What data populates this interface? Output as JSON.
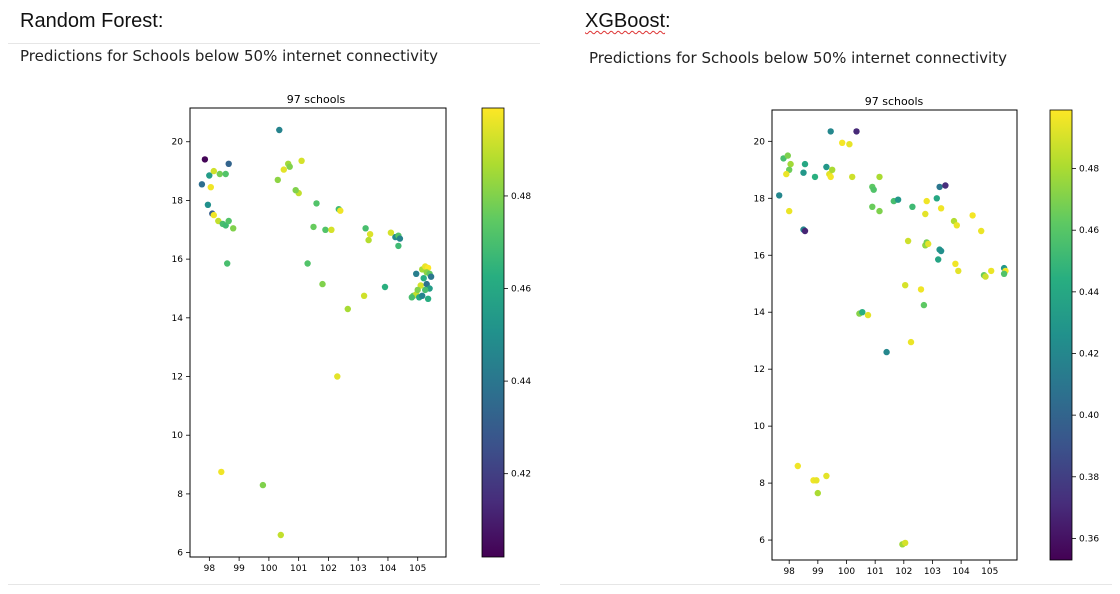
{
  "panels": [
    {
      "heading": "Random Forest:",
      "subheading": "Predictions for Schools below 50% internet connectivity"
    },
    {
      "heading": "XGBoost",
      "heading_suffix": ":",
      "subheading": "Predictions for Schools below 50% internet connectivity"
    }
  ],
  "chart_data": [
    {
      "type": "scatter",
      "title": "97 schools",
      "xlabel": "",
      "ylabel": "",
      "xlim": [
        97.35,
        105.95
      ],
      "ylim": [
        5.85,
        21.15
      ],
      "xticks": [
        "98",
        "99",
        "100",
        "101",
        "102",
        "103",
        "104",
        "105"
      ],
      "yticks": [
        "6",
        "8",
        "10",
        "12",
        "14",
        "16",
        "18",
        "20"
      ],
      "colormap": "viridis",
      "colorbar": {
        "range": [
          0.402,
          0.499
        ],
        "ticks": [
          "0.42",
          "0.44",
          "0.46",
          "0.48"
        ]
      },
      "points": [
        {
          "x": 97.85,
          "y": 19.4,
          "v": 0.403
        },
        {
          "x": 98.65,
          "y": 19.25,
          "v": 0.433
        },
        {
          "x": 97.75,
          "y": 18.55,
          "v": 0.437
        },
        {
          "x": 98.0,
          "y": 18.85,
          "v": 0.455
        },
        {
          "x": 98.15,
          "y": 19.0,
          "v": 0.492
        },
        {
          "x": 98.35,
          "y": 18.9,
          "v": 0.478
        },
        {
          "x": 98.55,
          "y": 18.9,
          "v": 0.472
        },
        {
          "x": 98.05,
          "y": 18.45,
          "v": 0.497
        },
        {
          "x": 97.95,
          "y": 17.85,
          "v": 0.45
        },
        {
          "x": 98.1,
          "y": 17.55,
          "v": 0.43
        },
        {
          "x": 98.15,
          "y": 17.5,
          "v": 0.497
        },
        {
          "x": 98.3,
          "y": 17.3,
          "v": 0.49
        },
        {
          "x": 98.45,
          "y": 17.2,
          "v": 0.47
        },
        {
          "x": 98.55,
          "y": 17.15,
          "v": 0.468
        },
        {
          "x": 98.65,
          "y": 17.3,
          "v": 0.472
        },
        {
          "x": 98.8,
          "y": 17.05,
          "v": 0.48
        },
        {
          "x": 98.6,
          "y": 15.85,
          "v": 0.47
        },
        {
          "x": 100.35,
          "y": 20.4,
          "v": 0.445
        },
        {
          "x": 100.3,
          "y": 18.7,
          "v": 0.482
        },
        {
          "x": 100.5,
          "y": 19.05,
          "v": 0.495
        },
        {
          "x": 100.65,
          "y": 19.25,
          "v": 0.485
        },
        {
          "x": 100.7,
          "y": 19.15,
          "v": 0.48
        },
        {
          "x": 101.1,
          "y": 19.35,
          "v": 0.493
        },
        {
          "x": 101.0,
          "y": 18.25,
          "v": 0.49
        },
        {
          "x": 100.9,
          "y": 18.35,
          "v": 0.48
        },
        {
          "x": 101.6,
          "y": 17.9,
          "v": 0.472
        },
        {
          "x": 101.5,
          "y": 17.1,
          "v": 0.476
        },
        {
          "x": 101.9,
          "y": 17.0,
          "v": 0.472
        },
        {
          "x": 102.1,
          "y": 17.0,
          "v": 0.493
        },
        {
          "x": 102.35,
          "y": 17.7,
          "v": 0.468
        },
        {
          "x": 102.4,
          "y": 17.65,
          "v": 0.497
        },
        {
          "x": 101.3,
          "y": 15.85,
          "v": 0.472
        },
        {
          "x": 101.8,
          "y": 15.15,
          "v": 0.48
        },
        {
          "x": 102.65,
          "y": 14.3,
          "v": 0.486
        },
        {
          "x": 102.3,
          "y": 12.0,
          "v": 0.495
        },
        {
          "x": 103.25,
          "y": 17.05,
          "v": 0.47
        },
        {
          "x": 103.35,
          "y": 16.65,
          "v": 0.488
        },
        {
          "x": 103.4,
          "y": 16.85,
          "v": 0.494
        },
        {
          "x": 103.2,
          "y": 14.75,
          "v": 0.492
        },
        {
          "x": 103.9,
          "y": 15.05,
          "v": 0.463
        },
        {
          "x": 104.1,
          "y": 16.9,
          "v": 0.493
        },
        {
          "x": 104.25,
          "y": 16.75,
          "v": 0.448
        },
        {
          "x": 104.35,
          "y": 16.8,
          "v": 0.472
        },
        {
          "x": 104.35,
          "y": 16.45,
          "v": 0.468
        },
        {
          "x": 104.4,
          "y": 16.7,
          "v": 0.445
        },
        {
          "x": 104.95,
          "y": 15.5,
          "v": 0.443
        },
        {
          "x": 105.15,
          "y": 15.65,
          "v": 0.486
        },
        {
          "x": 105.25,
          "y": 15.75,
          "v": 0.496
        },
        {
          "x": 105.35,
          "y": 15.7,
          "v": 0.499
        },
        {
          "x": 105.3,
          "y": 15.55,
          "v": 0.482
        },
        {
          "x": 105.4,
          "y": 15.5,
          "v": 0.475
        },
        {
          "x": 105.2,
          "y": 15.35,
          "v": 0.462
        },
        {
          "x": 105.45,
          "y": 15.4,
          "v": 0.44
        },
        {
          "x": 105.1,
          "y": 15.1,
          "v": 0.493
        },
        {
          "x": 105.3,
          "y": 15.15,
          "v": 0.438
        },
        {
          "x": 105.4,
          "y": 15.0,
          "v": 0.455
        },
        {
          "x": 105.25,
          "y": 14.95,
          "v": 0.47
        },
        {
          "x": 104.85,
          "y": 14.75,
          "v": 0.476
        },
        {
          "x": 104.95,
          "y": 14.8,
          "v": 0.49
        },
        {
          "x": 104.8,
          "y": 14.7,
          "v": 0.47
        },
        {
          "x": 105.05,
          "y": 14.7,
          "v": 0.46
        },
        {
          "x": 105.15,
          "y": 14.75,
          "v": 0.445
        },
        {
          "x": 105.35,
          "y": 14.65,
          "v": 0.462
        },
        {
          "x": 105.0,
          "y": 14.95,
          "v": 0.48
        },
        {
          "x": 98.4,
          "y": 8.75,
          "v": 0.497
        },
        {
          "x": 99.8,
          "y": 8.3,
          "v": 0.48
        },
        {
          "x": 100.4,
          "y": 6.6,
          "v": 0.49
        }
      ]
    },
    {
      "type": "scatter",
      "title": "97 schools",
      "xlabel": "",
      "ylabel": "",
      "xlim": [
        97.4,
        105.95
      ],
      "ylim": [
        5.3,
        21.1
      ],
      "xticks": [
        "98",
        "99",
        "100",
        "101",
        "102",
        "103",
        "104",
        "105"
      ],
      "yticks": [
        "6",
        "8",
        "10",
        "12",
        "14",
        "16",
        "18",
        "20"
      ],
      "colormap": "viridis",
      "colorbar": {
        "range": [
          0.353,
          0.499
        ],
        "ticks": [
          "0.36",
          "0.38",
          "0.40",
          "0.42",
          "0.44",
          "0.46",
          "0.48"
        ]
      },
      "points": [
        {
          "x": 97.65,
          "y": 18.1,
          "v": 0.42
        },
        {
          "x": 97.8,
          "y": 19.4,
          "v": 0.455
        },
        {
          "x": 97.95,
          "y": 19.5,
          "v": 0.47
        },
        {
          "x": 98.05,
          "y": 19.2,
          "v": 0.478
        },
        {
          "x": 98.0,
          "y": 19.0,
          "v": 0.466
        },
        {
          "x": 97.9,
          "y": 18.85,
          "v": 0.495
        },
        {
          "x": 98.55,
          "y": 19.2,
          "v": 0.44
        },
        {
          "x": 98.5,
          "y": 18.9,
          "v": 0.43
        },
        {
          "x": 98.0,
          "y": 17.55,
          "v": 0.495
        },
        {
          "x": 98.5,
          "y": 16.9,
          "v": 0.42
        },
        {
          "x": 98.55,
          "y": 16.85,
          "v": 0.368
        },
        {
          "x": 98.9,
          "y": 18.75,
          "v": 0.445
        },
        {
          "x": 99.3,
          "y": 19.1,
          "v": 0.43
        },
        {
          "x": 99.4,
          "y": 18.85,
          "v": 0.493
        },
        {
          "x": 99.5,
          "y": 19.0,
          "v": 0.48
        },
        {
          "x": 99.45,
          "y": 18.75,
          "v": 0.497
        },
        {
          "x": 99.45,
          "y": 20.35,
          "v": 0.42
        },
        {
          "x": 99.85,
          "y": 19.95,
          "v": 0.497
        },
        {
          "x": 100.1,
          "y": 19.9,
          "v": 0.494
        },
        {
          "x": 100.35,
          "y": 20.35,
          "v": 0.37
        },
        {
          "x": 100.2,
          "y": 18.75,
          "v": 0.488
        },
        {
          "x": 100.9,
          "y": 18.4,
          "v": 0.462
        },
        {
          "x": 100.95,
          "y": 18.3,
          "v": 0.458
        },
        {
          "x": 101.15,
          "y": 18.75,
          "v": 0.48
        },
        {
          "x": 100.9,
          "y": 17.7,
          "v": 0.465
        },
        {
          "x": 101.15,
          "y": 17.55,
          "v": 0.47
        },
        {
          "x": 101.65,
          "y": 17.9,
          "v": 0.455
        },
        {
          "x": 101.8,
          "y": 17.95,
          "v": 0.43
        },
        {
          "x": 102.3,
          "y": 17.7,
          "v": 0.452
        },
        {
          "x": 102.75,
          "y": 17.45,
          "v": 0.493
        },
        {
          "x": 102.8,
          "y": 17.9,
          "v": 0.496
        },
        {
          "x": 103.15,
          "y": 18.0,
          "v": 0.44
        },
        {
          "x": 103.25,
          "y": 18.4,
          "v": 0.41
        },
        {
          "x": 103.45,
          "y": 18.45,
          "v": 0.372
        },
        {
          "x": 103.3,
          "y": 17.65,
          "v": 0.496
        },
        {
          "x": 103.75,
          "y": 17.2,
          "v": 0.482
        },
        {
          "x": 103.85,
          "y": 17.05,
          "v": 0.495
        },
        {
          "x": 104.4,
          "y": 17.4,
          "v": 0.497
        },
        {
          "x": 104.7,
          "y": 16.85,
          "v": 0.495
        },
        {
          "x": 102.15,
          "y": 16.5,
          "v": 0.488
        },
        {
          "x": 102.75,
          "y": 16.35,
          "v": 0.475
        },
        {
          "x": 102.8,
          "y": 16.45,
          "v": 0.468
        },
        {
          "x": 102.85,
          "y": 16.4,
          "v": 0.493
        },
        {
          "x": 103.25,
          "y": 16.2,
          "v": 0.43
        },
        {
          "x": 103.3,
          "y": 16.15,
          "v": 0.425
        },
        {
          "x": 103.2,
          "y": 15.85,
          "v": 0.438
        },
        {
          "x": 103.8,
          "y": 15.7,
          "v": 0.496
        },
        {
          "x": 103.9,
          "y": 15.45,
          "v": 0.493
        },
        {
          "x": 104.8,
          "y": 15.3,
          "v": 0.465
        },
        {
          "x": 104.85,
          "y": 15.25,
          "v": 0.488
        },
        {
          "x": 105.05,
          "y": 15.45,
          "v": 0.495
        },
        {
          "x": 105.5,
          "y": 15.55,
          "v": 0.43
        },
        {
          "x": 105.55,
          "y": 15.45,
          "v": 0.497
        },
        {
          "x": 105.5,
          "y": 15.35,
          "v": 0.458
        },
        {
          "x": 102.05,
          "y": 14.95,
          "v": 0.49
        },
        {
          "x": 102.6,
          "y": 14.8,
          "v": 0.496
        },
        {
          "x": 102.7,
          "y": 14.25,
          "v": 0.462
        },
        {
          "x": 100.45,
          "y": 13.95,
          "v": 0.472
        },
        {
          "x": 100.55,
          "y": 14.0,
          "v": 0.445
        },
        {
          "x": 100.75,
          "y": 13.9,
          "v": 0.493
        },
        {
          "x": 101.4,
          "y": 12.6,
          "v": 0.42
        },
        {
          "x": 102.25,
          "y": 12.95,
          "v": 0.495
        },
        {
          "x": 98.3,
          "y": 8.6,
          "v": 0.496
        },
        {
          "x": 98.85,
          "y": 8.1,
          "v": 0.496
        },
        {
          "x": 98.95,
          "y": 8.1,
          "v": 0.494
        },
        {
          "x": 99.3,
          "y": 8.25,
          "v": 0.493
        },
        {
          "x": 99.0,
          "y": 7.65,
          "v": 0.48
        },
        {
          "x": 101.95,
          "y": 5.85,
          "v": 0.478
        },
        {
          "x": 102.05,
          "y": 5.9,
          "v": 0.49
        }
      ]
    }
  ]
}
